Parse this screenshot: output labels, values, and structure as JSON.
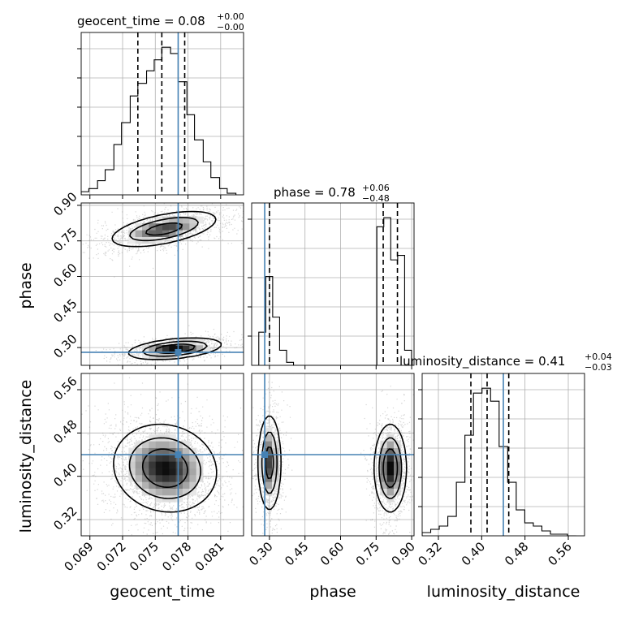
{
  "chart_data": {
    "type": "corner",
    "parameters": [
      "geocent_time",
      "phase",
      "luminosity_distance"
    ],
    "truths": {
      "geocent_time": 0.0771,
      "phase": 0.28,
      "luminosity_distance": 0.44
    },
    "truth_color": "#4682b4",
    "grid": true,
    "titles": [
      {
        "name": "geocent_time",
        "median": "0.08",
        "plus": "+0.00",
        "minus": "−0.00"
      },
      {
        "name": "phase",
        "median": "0.78",
        "plus": "+0.06",
        "minus": "−0.48"
      },
      {
        "name": "luminosity_distance",
        "median": "0.41",
        "plus": "+0.04",
        "minus": "−0.03"
      }
    ],
    "axes": {
      "geocent_time": {
        "range": [
          0.0682,
          0.0831
        ],
        "ticks": [
          0.069,
          0.072,
          0.075,
          0.078,
          0.081
        ],
        "tick_labels": [
          "0.069",
          "0.072",
          "0.075",
          "0.078",
          "0.081"
        ],
        "label": "geocent_time"
      },
      "phase": {
        "range": [
          0.225,
          0.91
        ],
        "ticks": [
          0.3,
          0.45,
          0.6,
          0.75,
          0.9
        ],
        "tick_labels": [
          "0.30",
          "0.45",
          "0.60",
          "0.75",
          "0.90"
        ],
        "label": "phase"
      },
      "luminosity_distance": {
        "range": [
          0.29,
          0.59
        ],
        "ticks": [
          0.32,
          0.4,
          0.48,
          0.56
        ],
        "tick_labels": [
          "0.32",
          "0.40",
          "0.48",
          "0.56"
        ],
        "label": "luminosity_distance"
      }
    },
    "histograms": [
      {
        "parameter": "geocent_time",
        "bins": [
          0.0682,
          0.0689,
          0.0697,
          0.0704,
          0.0712,
          0.0719,
          0.0727,
          0.0734,
          0.0742,
          0.0749,
          0.0756,
          0.0764,
          0.0771,
          0.0779,
          0.0786,
          0.0794,
          0.0801,
          0.0809,
          0.0816,
          0.0824
        ],
        "counts": [
          2,
          4,
          9,
          16,
          32,
          46,
          63,
          71,
          79,
          86,
          94,
          90,
          72,
          51,
          35,
          21,
          11,
          4,
          1
        ],
        "quantiles": [
          0.0734,
          0.0756,
          0.0777
        ]
      },
      {
        "parameter": "phase",
        "bins": [
          0.255,
          0.2843,
          0.3136,
          0.3429,
          0.3722,
          0.4015,
          0.4308,
          0.4601,
          0.4894,
          0.5187,
          0.548,
          0.5773,
          0.6066,
          0.6359,
          0.6652,
          0.6945,
          0.7238,
          0.7531,
          0.7824,
          0.8117,
          0.841,
          0.8703,
          0.8996
        ],
        "counts": [
          22,
          59,
          32,
          10,
          2,
          0,
          0,
          0,
          0,
          0,
          0,
          0,
          0,
          0,
          0,
          0,
          0,
          92,
          98,
          70,
          73,
          10
        ],
        "quantiles": [
          0.3,
          0.78,
          0.84
        ]
      },
      {
        "parameter": "luminosity_distance",
        "bins": [
          0.29,
          0.3058,
          0.3216,
          0.3374,
          0.3532,
          0.369,
          0.3848,
          0.4006,
          0.4164,
          0.4322,
          0.448,
          0.4638,
          0.4796,
          0.4954,
          0.5112,
          0.527,
          0.5428,
          0.5586,
          0.5744
        ],
        "counts": [
          2,
          4,
          6,
          12,
          33,
          62,
          88,
          91,
          83,
          55,
          33,
          16,
          8,
          6,
          3,
          1,
          1,
          0
        ],
        "quantiles": [
          0.38,
          0.41,
          0.45
        ]
      }
    ],
    "joint": [
      {
        "x": "geocent_time",
        "y": "phase",
        "modes": [
          {
            "cx": 0.0758,
            "cy": 0.8,
            "sx": 0.0022,
            "sy": 0.034,
            "rho": 0.55,
            "weight": 0.62
          },
          {
            "cx": 0.0768,
            "cy": 0.295,
            "sx": 0.0019,
            "sy": 0.02,
            "rho": 0.4,
            "weight": 0.38
          }
        ]
      },
      {
        "x": "geocent_time",
        "y": "luminosity_distance",
        "modes": [
          {
            "cx": 0.0759,
            "cy": 0.415,
            "sx": 0.0021,
            "sy": 0.036,
            "rho": -0.1,
            "weight": 1.0
          }
        ]
      },
      {
        "x": "phase",
        "y": "luminosity_distance",
        "modes": [
          {
            "cx": 0.3,
            "cy": 0.425,
            "sx": 0.022,
            "sy": 0.04,
            "rho": 0.0,
            "weight": 0.4
          },
          {
            "cx": 0.81,
            "cy": 0.415,
            "sx": 0.03,
            "sy": 0.036,
            "rho": 0.0,
            "weight": 0.6
          }
        ]
      }
    ]
  }
}
